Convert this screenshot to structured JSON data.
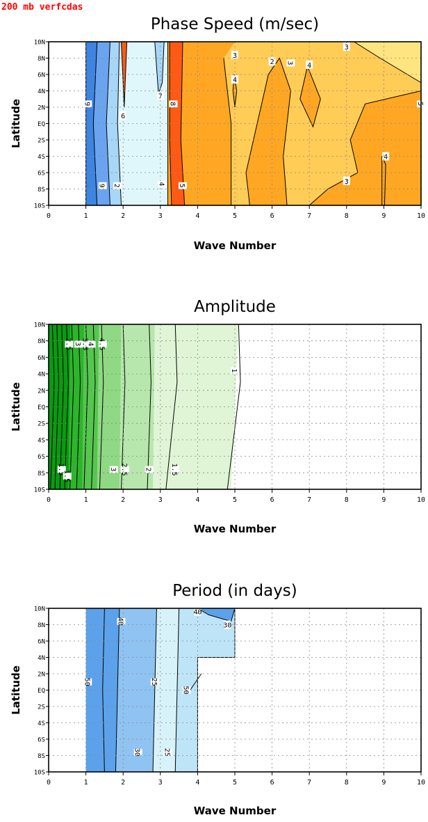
{
  "header_label": "200 mb verfcdas",
  "colors": {
    "header": "#ff0000",
    "phase": {
      "dark_blue": "#3d85e0",
      "mid_blue": "#6aa4f0",
      "light_blue": "#a8d6f7",
      "pale_cyan": "#dff7fb",
      "red": "#ff5a14",
      "orange": "#ffa722",
      "light_orange": "#ffcc55",
      "pale_yellow": "#ffe57f"
    },
    "amplitude": {
      "very_dark": "#0a9a12",
      "dark": "#2cb52a",
      "mid": "#55c64e",
      "light": "#8fd884",
      "lighter": "#b7e7ac",
      "pale": "#dff5d6"
    },
    "period": {
      "blue": "#5ba2ea",
      "mid": "#8fc3f2",
      "light": "#bee4f7",
      "pale": "#d8f2fa"
    }
  },
  "chart_data": [
    {
      "type": "contour",
      "title": "Phase Speed (m/sec)",
      "xlabel": "Wave Number",
      "ylabel": "Latitude",
      "xlim": [
        0,
        10
      ],
      "x_ticks": [
        "0",
        "1",
        "2",
        "3",
        "4",
        "5",
        "6",
        "7",
        "8",
        "9",
        "10"
      ],
      "y_ticks": [
        "10N",
        "8N",
        "6N",
        "4N",
        "2N",
        "EQ",
        "2S",
        "4S",
        "6S",
        "8S",
        "10S"
      ],
      "grid": true,
      "contour_labels": [
        "9",
        "9",
        "2",
        "6",
        "7",
        "8",
        "5",
        "4",
        "3",
        "2",
        "3",
        "4",
        "4",
        "3",
        "3",
        "5",
        "3",
        "4"
      ],
      "regions": [
        {
          "x_range": [
            1.0,
            1.3
          ],
          "value": "9"
        },
        {
          "x_range": [
            1.3,
            1.65
          ],
          "value": "8"
        },
        {
          "x_range": [
            1.65,
            3.2
          ],
          "value": "2"
        },
        {
          "x_range": [
            3.25,
            3.6
          ],
          "value": "5"
        },
        {
          "x_range": [
            3.6,
            10
          ],
          "value": "3"
        }
      ]
    },
    {
      "type": "contour",
      "title": "Amplitude",
      "xlabel": "Wave Number",
      "ylabel": "Latitude",
      "xlim": [
        0,
        10
      ],
      "x_ticks": [
        "0",
        "1",
        "2",
        "3",
        "4",
        "5",
        "6",
        "7",
        "8",
        "9",
        "10"
      ],
      "y_ticks": [
        "10N",
        "8N",
        "6N",
        "4N",
        "2N",
        "EQ",
        "2S",
        "4S",
        "6S",
        "8S",
        "10S"
      ],
      "grid": true,
      "contour_levels": [
        1,
        1.5,
        2,
        2.5,
        3,
        3.5,
        4,
        4.5
      ],
      "contour_labels": [
        "2.5",
        "3",
        "3.5",
        "4",
        "4.5",
        "1",
        "1.5",
        "1.5",
        "3",
        "2.5",
        "2",
        "1.5"
      ],
      "data_extent_x": [
        0,
        5.1
      ]
    },
    {
      "type": "contour",
      "title": "Period (in days)",
      "xlabel": "Wave Number",
      "ylabel": "Latitude",
      "xlim": [
        0,
        10
      ],
      "x_ticks": [
        "0",
        "1",
        "2",
        "3",
        "4",
        "5",
        "6",
        "7",
        "8",
        "9",
        "10"
      ],
      "y_ticks": [
        "10N",
        "8N",
        "6N",
        "4N",
        "2N",
        "EQ",
        "2S",
        "4S",
        "6S",
        "8S",
        "10S"
      ],
      "grid": true,
      "contour_labels": [
        "40",
        "40",
        "30",
        "50",
        "50",
        "25",
        "30",
        "25"
      ],
      "data_extent_x": [
        1,
        5
      ]
    }
  ]
}
